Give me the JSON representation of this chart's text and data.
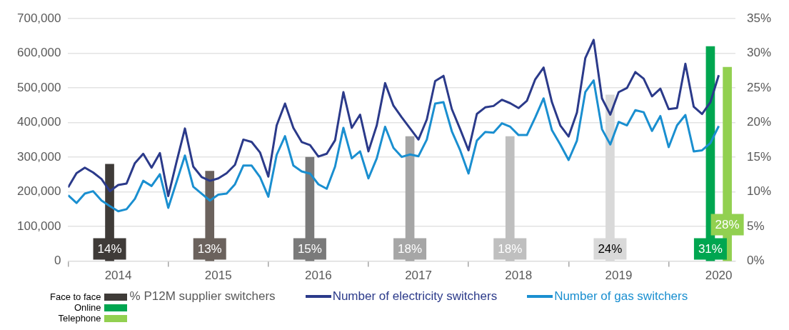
{
  "chart_data": {
    "type": "line",
    "x": [
      "2014-01",
      "2014-02",
      "2014-03",
      "2014-04",
      "2014-05",
      "2014-06",
      "2014-07",
      "2014-08",
      "2014-09",
      "2014-10",
      "2014-11",
      "2014-12",
      "2015-01",
      "2015-02",
      "2015-03",
      "2015-04",
      "2015-05",
      "2015-06",
      "2015-07",
      "2015-08",
      "2015-09",
      "2015-10",
      "2015-11",
      "2015-12",
      "2016-01",
      "2016-02",
      "2016-03",
      "2016-04",
      "2016-05",
      "2016-06",
      "2016-07",
      "2016-08",
      "2016-09",
      "2016-10",
      "2016-11",
      "2016-12",
      "2017-01",
      "2017-02",
      "2017-03",
      "2017-04",
      "2017-05",
      "2017-06",
      "2017-07",
      "2017-08",
      "2017-09",
      "2017-10",
      "2017-11",
      "2017-12",
      "2018-01",
      "2018-02",
      "2018-03",
      "2018-04",
      "2018-05",
      "2018-06",
      "2018-07",
      "2018-08",
      "2018-09",
      "2018-10",
      "2018-11",
      "2018-12",
      "2019-01",
      "2019-02",
      "2019-03",
      "2019-04",
      "2019-05",
      "2019-06",
      "2019-07",
      "2019-08",
      "2019-09",
      "2019-10",
      "2019-11",
      "2019-12",
      "2020-01",
      "2020-02",
      "2020-03",
      "2020-04",
      "2020-05",
      "2020-06",
      "2020-07"
    ],
    "series": [
      {
        "name": "Face to face",
        "type": "bar",
        "axis": "y2",
        "color": "#3f3b38",
        "x": [
          "2014-07",
          "2015-07",
          "2016-07",
          "2017-07",
          "2018-07",
          "2019-07"
        ],
        "values": [
          14,
          13,
          15,
          18,
          18,
          24
        ],
        "colors": [
          "#3f3b38",
          "#6b625d",
          "#7a7a7a",
          "#a6a6a6",
          "#bfbfbf",
          "#d9d9d9"
        ],
        "value_labels": [
          "14%",
          "13%",
          "15%",
          "18%",
          "18%",
          "24%"
        ]
      },
      {
        "name": "Online",
        "type": "bar",
        "axis": "y2",
        "color": "#00a650",
        "x": [
          "2020-06"
        ],
        "values": [
          31
        ],
        "value_labels": [
          "31%"
        ]
      },
      {
        "name": "Telephone",
        "type": "bar",
        "axis": "y2",
        "color": "#92d050",
        "x": [
          "2020-07"
        ],
        "values": [
          28
        ],
        "value_labels": [
          "28%"
        ]
      },
      {
        "name": "Number of electricity switchers",
        "color": "#2b3a8a",
        "values": [
          213000,
          254000,
          270000,
          256000,
          237000,
          202000,
          220000,
          224000,
          283000,
          310000,
          270000,
          312000,
          188000,
          287000,
          383000,
          273000,
          243000,
          232000,
          239000,
          254000,
          278000,
          351000,
          344000,
          314000,
          244000,
          392000,
          455000,
          385000,
          344000,
          335000,
          302000,
          310000,
          349000,
          488000,
          385000,
          423000,
          317000,
          392000,
          514000,
          449000,
          415000,
          383000,
          351000,
          409000,
          520000,
          535000,
          439000,
          381000,
          320000,
          425000,
          444000,
          448000,
          466000,
          456000,
          442000,
          463000,
          525000,
          559000,
          459000,
          392000,
          360000,
          429000,
          586000,
          639000,
          470000,
          423000,
          488000,
          500000,
          546000,
          527000,
          476000,
          498000,
          439000,
          442000,
          570000,
          446000,
          425000,
          459000,
          537000
        ]
      },
      {
        "name": "Number of gas switchers",
        "color": "#1a8fd0",
        "values": [
          190000,
          168000,
          195000,
          202000,
          175000,
          159000,
          144000,
          150000,
          180000,
          232000,
          217000,
          251000,
          154000,
          229000,
          305000,
          215000,
          195000,
          175000,
          192000,
          195000,
          222000,
          276000,
          276000,
          243000,
          186000,
          307000,
          361000,
          276000,
          259000,
          253000,
          222000,
          209000,
          273000,
          385000,
          297000,
          317000,
          239000,
          297000,
          388000,
          327000,
          301000,
          308000,
          303000,
          351000,
          455000,
          459000,
          375000,
          320000,
          253000,
          348000,
          373000,
          371000,
          398000,
          388000,
          364000,
          364000,
          415000,
          470000,
          378000,
          337000,
          292000,
          348000,
          488000,
          522000,
          381000,
          337000,
          402000,
          392000,
          436000,
          430000,
          376000,
          419000,
          329000,
          392000,
          422000,
          317000,
          320000,
          341000,
          390000
        ]
      }
    ],
    "legend_title": "% P12M supplier switchers",
    "xlim": [
      "2014-01",
      "2020-09"
    ],
    "xticks": [
      {
        "value": "2014-01",
        "label": null
      },
      {
        "value": "2014-07",
        "label": "2014"
      },
      {
        "value": "2015-01",
        "label": null
      },
      {
        "value": "2015-07",
        "label": "2015"
      },
      {
        "value": "2016-01",
        "label": null
      },
      {
        "value": "2016-07",
        "label": "2016"
      },
      {
        "value": "2017-01",
        "label": null
      },
      {
        "value": "2017-07",
        "label": "2017"
      },
      {
        "value": "2018-01",
        "label": null
      },
      {
        "value": "2018-07",
        "label": "2018"
      },
      {
        "value": "2019-01",
        "label": null
      },
      {
        "value": "2019-07",
        "label": "2019"
      },
      {
        "value": "2020-01",
        "label": null
      },
      {
        "value": "2020-07",
        "label": "2020"
      }
    ],
    "ylim": [
      0,
      700000
    ],
    "yticks": [
      {
        "value": 0,
        "label": "0"
      },
      {
        "value": 100000,
        "label": "100,000"
      },
      {
        "value": 200000,
        "label": "200,000"
      },
      {
        "value": 300000,
        "label": "300,000"
      },
      {
        "value": 400000,
        "label": "400,000"
      },
      {
        "value": 500000,
        "label": "500,000"
      },
      {
        "value": 600000,
        "label": "600,000"
      },
      {
        "value": 700000,
        "label": "700,000"
      }
    ],
    "y2lim": [
      0,
      35
    ],
    "y2ticks": [
      {
        "value": 0,
        "label": "0%"
      },
      {
        "value": 5,
        "label": "5%"
      },
      {
        "value": 10,
        "label": "10%"
      },
      {
        "value": 15,
        "label": "15%"
      },
      {
        "value": 20,
        "label": "20%"
      },
      {
        "value": 25,
        "label": "25%"
      },
      {
        "value": 30,
        "label": "30%"
      },
      {
        "value": 35,
        "label": "35%"
      }
    ],
    "grid": "y",
    "legend": "bottom"
  }
}
